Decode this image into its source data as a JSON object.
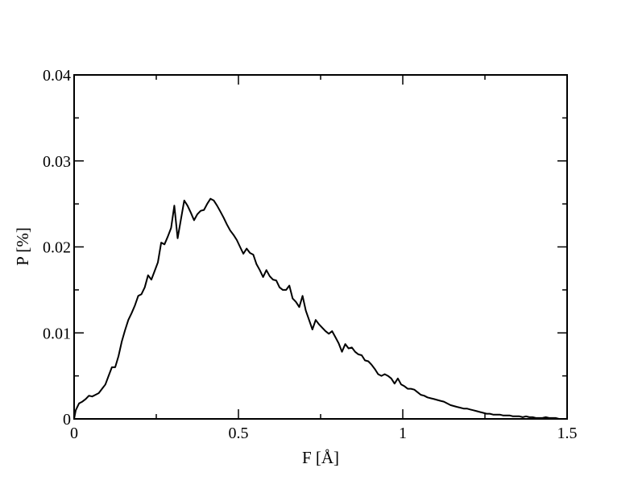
{
  "chart_data": {
    "type": "line",
    "title": "",
    "xlabel": "F [Å]",
    "ylabel": "P [%]",
    "xlim": [
      0,
      1.5
    ],
    "ylim": [
      0,
      0.04
    ],
    "grid": false,
    "x_ticks": [
      0,
      0.5,
      1,
      1.5
    ],
    "x_tick_labels": [
      "0",
      "0.5",
      "1",
      "1.5"
    ],
    "y_ticks": [
      0,
      0.01,
      0.02,
      0.03,
      0.04
    ],
    "y_tick_labels": [
      "0",
      "0.01",
      "0.02",
      "0.03",
      "0.04"
    ],
    "colors": {
      "line": "#000000",
      "axes": "#000000",
      "background": "#ffffff"
    },
    "series": [
      {
        "x": [
          0.0,
          0.005,
          0.015,
          0.025,
          0.035,
          0.045,
          0.055,
          0.065,
          0.075,
          0.085,
          0.095,
          0.105,
          0.115,
          0.125,
          0.135,
          0.145,
          0.155,
          0.165,
          0.175,
          0.185,
          0.195,
          0.205,
          0.215,
          0.225,
          0.235,
          0.245,
          0.255,
          0.265,
          0.275,
          0.285,
          0.295,
          0.305,
          0.315,
          0.325,
          0.335,
          0.345,
          0.355,
          0.365,
          0.375,
          0.385,
          0.395,
          0.405,
          0.415,
          0.425,
          0.435,
          0.445,
          0.455,
          0.465,
          0.475,
          0.485,
          0.495,
          0.505,
          0.515,
          0.525,
          0.535,
          0.545,
          0.555,
          0.565,
          0.575,
          0.585,
          0.595,
          0.605,
          0.615,
          0.625,
          0.635,
          0.645,
          0.655,
          0.665,
          0.675,
          0.685,
          0.695,
          0.705,
          0.715,
          0.725,
          0.735,
          0.745,
          0.755,
          0.765,
          0.775,
          0.785,
          0.795,
          0.805,
          0.815,
          0.825,
          0.835,
          0.845,
          0.855,
          0.865,
          0.875,
          0.885,
          0.895,
          0.905,
          0.915,
          0.925,
          0.935,
          0.945,
          0.955,
          0.965,
          0.975,
          0.985,
          0.995,
          1.005,
          1.015,
          1.025,
          1.035,
          1.045,
          1.055,
          1.065,
          1.075,
          1.085,
          1.095,
          1.105,
          1.115,
          1.125,
          1.135,
          1.145,
          1.155,
          1.165,
          1.175,
          1.185,
          1.195,
          1.205,
          1.215,
          1.225,
          1.235,
          1.245,
          1.255,
          1.265,
          1.275,
          1.285,
          1.295,
          1.305,
          1.315,
          1.325,
          1.335,
          1.345,
          1.355,
          1.365,
          1.375,
          1.385,
          1.395,
          1.405,
          1.415,
          1.425,
          1.435,
          1.445,
          1.455,
          1.465,
          1.475,
          1.485,
          1.495
        ],
        "values": [
          0.0,
          0.001,
          0.0018,
          0.002,
          0.0023,
          0.0027,
          0.0026,
          0.0028,
          0.003,
          0.0035,
          0.004,
          0.005,
          0.006,
          0.006,
          0.0073,
          0.009,
          0.0103,
          0.0115,
          0.0123,
          0.0132,
          0.0143,
          0.0145,
          0.0153,
          0.0167,
          0.0162,
          0.0172,
          0.0182,
          0.0205,
          0.0203,
          0.0212,
          0.0222,
          0.0248,
          0.021,
          0.0232,
          0.0254,
          0.0248,
          0.024,
          0.0231,
          0.0238,
          0.0242,
          0.0243,
          0.025,
          0.0256,
          0.0254,
          0.0248,
          0.0241,
          0.0234,
          0.0226,
          0.0219,
          0.0214,
          0.0208,
          0.02,
          0.0192,
          0.0198,
          0.0193,
          0.0191,
          0.018,
          0.0173,
          0.0165,
          0.0173,
          0.0166,
          0.0162,
          0.0161,
          0.0153,
          0.015,
          0.015,
          0.0155,
          0.014,
          0.0136,
          0.013,
          0.0143,
          0.0126,
          0.0115,
          0.0104,
          0.0115,
          0.011,
          0.0106,
          0.0102,
          0.0099,
          0.0102,
          0.0095,
          0.0088,
          0.0078,
          0.0087,
          0.0082,
          0.0083,
          0.0078,
          0.0075,
          0.0074,
          0.0068,
          0.0067,
          0.0063,
          0.0058,
          0.0052,
          0.005,
          0.0052,
          0.005,
          0.0047,
          0.0041,
          0.0047,
          0.004,
          0.0038,
          0.0035,
          0.0035,
          0.0034,
          0.0031,
          0.0028,
          0.0027,
          0.0025,
          0.0024,
          0.0023,
          0.0022,
          0.0021,
          0.002,
          0.0018,
          0.0016,
          0.0015,
          0.0014,
          0.0013,
          0.0012,
          0.0012,
          0.0011,
          0.001,
          0.0009,
          0.0008,
          0.0007,
          0.0006,
          0.0006,
          0.0005,
          0.0005,
          0.0005,
          0.0004,
          0.0004,
          0.0004,
          0.0003,
          0.0003,
          0.0003,
          0.0002,
          0.0003,
          0.0002,
          0.0002,
          0.0001,
          0.0001,
          0.0001,
          0.0002,
          0.0001,
          0.0001,
          0.0001,
          0.0,
          0.0,
          0.0
        ]
      }
    ]
  }
}
